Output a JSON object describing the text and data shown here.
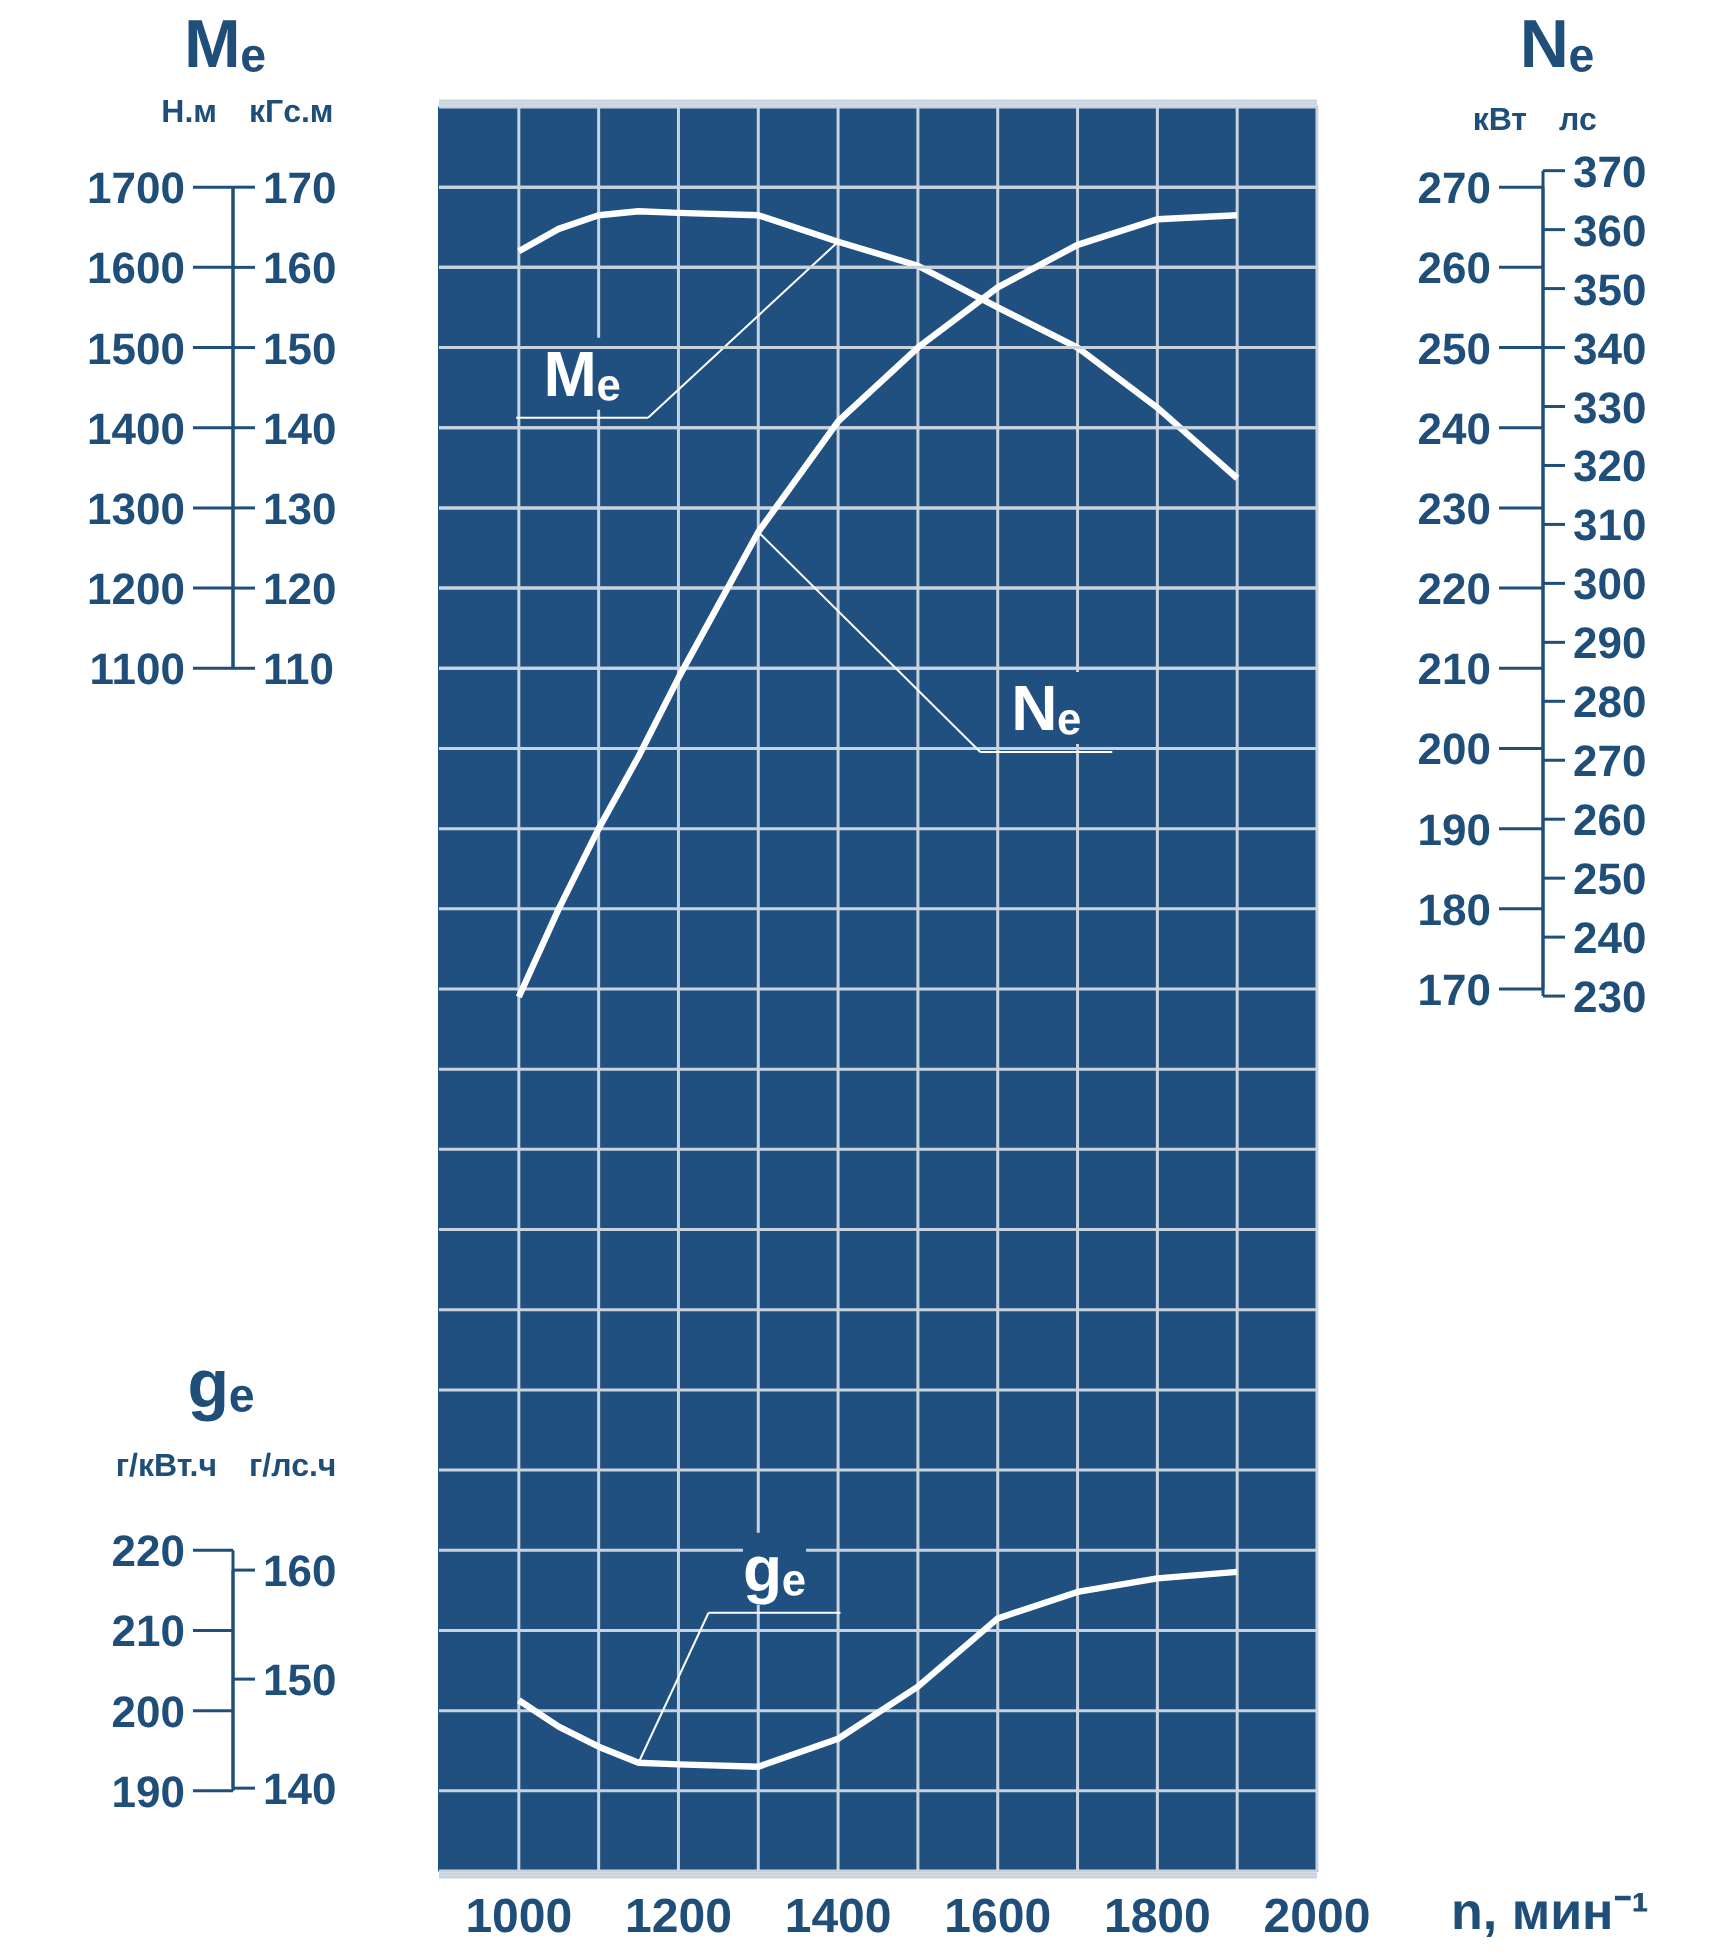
{
  "chart_data": [
    {
      "type": "line",
      "annotations": [
        "Mₑ"
      ],
      "ylabel": "Н.м",
      "y2label": "кГс.м",
      "tick_labels": "y",
      "legend": false,
      "x": [
        1000,
        1050,
        1100,
        1150,
        1200,
        1300,
        1400,
        1500,
        1600,
        1700,
        1800,
        1900
      ],
      "xlim": [
        900,
        2000
      ],
      "xticks": [
        1000,
        {
          "value": 1100,
          "label": null
        },
        1200,
        {
          "value": 1300,
          "label": null
        },
        1400,
        {
          "value": 1500,
          "label": null
        },
        1600,
        {
          "value": 1700,
          "label": null
        },
        1800,
        {
          "value": 1900,
          "label": null
        },
        2000
      ],
      "ylim": [
        -400,
        1800
      ],
      "yticks": [
        1100,
        1200,
        1300,
        1400,
        1500,
        1600,
        1700
      ],
      "y2lim": [
        -40,
        180
      ],
      "y2ticks": [
        110,
        120,
        130,
        140,
        150,
        160,
        170
      ],
      "grid": true,
      "line_style": "solid",
      "series": [
        {
          "name": "Mₑ",
          "color": "#ffffff",
          "axis": "y",
          "values": [
            1620,
            1648,
            1665,
            1670,
            1668,
            1665,
            1632,
            1602,
            1550,
            1500,
            1425,
            1337
          ]
        }
      ]
    },
    {
      "type": "line",
      "annotations": [
        "Nₑ"
      ],
      "ylabel": "кВт",
      "y2label": "лс",
      "tick_labels": "y",
      "legend": false,
      "x": [
        1000,
        1050,
        1100,
        1150,
        1200,
        1300,
        1400,
        1500,
        1600,
        1700,
        1800,
        1900
      ],
      "xlim": [
        900,
        2000
      ],
      "ylim": [
        60,
        280
      ],
      "yticks": [
        {
          "value": 110,
          "label": null
        },
        {
          "value": 120,
          "label": null
        },
        {
          "value": 130,
          "label": null
        },
        {
          "value": 140,
          "label": null
        },
        {
          "value": 150,
          "label": null
        },
        {
          "value": 160,
          "label": null
        },
        170,
        180,
        190,
        200,
        210,
        220,
        230,
        240,
        250,
        260,
        270
      ],
      "y2lim": [
        81.6,
        380.8
      ],
      "y2ticks": [
        230,
        240,
        250,
        260,
        270,
        280,
        290,
        300,
        310,
        320,
        330,
        340,
        350,
        360,
        370
      ],
      "grid": "y",
      "line_style": "solid",
      "series": [
        {
          "name": "Nₑ",
          "color": "#ffffff",
          "axis": "y",
          "values": [
            169,
            180,
            190,
            199,
            208.8,
            227,
            240.8,
            250,
            257.5,
            262.8,
            266,
            266.5
          ]
        }
      ]
    },
    {
      "type": "line",
      "annotations": [
        "gₑ"
      ],
      "ylabel": "г/кВт.ч",
      "y2label": "г/лс.ч",
      "xlabel": "n, мин⁻¹",
      "legend": false,
      "x": [
        1000,
        1050,
        1100,
        1150,
        1200,
        1300,
        1400,
        1500,
        1600,
        1700,
        1800,
        1900
      ],
      "xlim": [
        900,
        2000
      ],
      "xticks": [
        1000,
        1200,
        1400,
        1600,
        1800,
        2000
      ],
      "ylim": [
        180,
        400
      ],
      "yticks": [
        190,
        200,
        210,
        220
      ],
      "y2lim": [
        132.4,
        294.2
      ],
      "y2ticks": [
        140,
        150,
        160
      ],
      "grid": "y",
      "line_style": "solid",
      "series": [
        {
          "name": "gₑ",
          "color": "#ffffff",
          "axis": "y",
          "values": [
            201.3,
            198,
            195.5,
            193.5,
            193.3,
            193,
            196.5,
            203,
            211.5,
            214.8,
            216.5,
            217.3
          ]
        }
      ]
    }
  ]
}
